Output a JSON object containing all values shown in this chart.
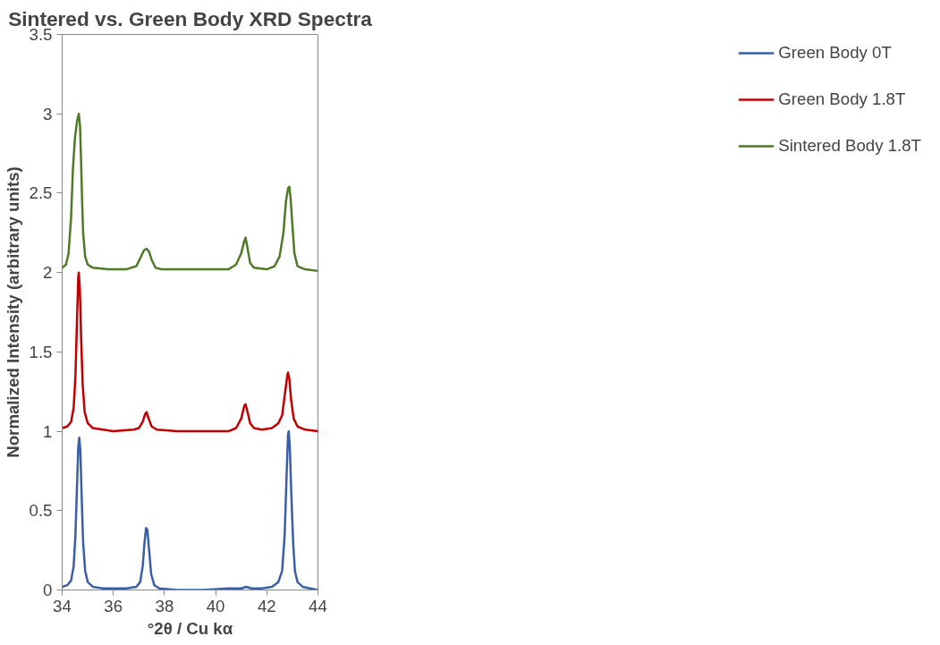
{
  "chart_data": {
    "type": "line",
    "title": "Sintered vs. Green Body XRD Spectra",
    "xlabel": "°2θ / Cu kα",
    "ylabel": "Normalized Intensity (arbitrary units)",
    "xlim": [
      34,
      44
    ],
    "xticks": [
      34,
      36,
      38,
      40,
      42,
      44
    ],
    "ylim": [
      0,
      3.5
    ],
    "yticks": [
      0,
      {
        "value": 0.5,
        "label": "0.5"
      },
      1,
      {
        "value": 1.5,
        "label": "1.5"
      },
      2,
      {
        "value": 2.5,
        "label": "2.5"
      },
      3,
      {
        "value": 3.5,
        "label": "3.5"
      }
    ],
    "grid": false,
    "legend": "right",
    "marker": "none",
    "line_style": "solid",
    "series": [
      {
        "name": "Green Body 0T",
        "color": "#3a5ea8",
        "x": [
          34.0,
          34.2,
          34.35,
          34.45,
          34.52,
          34.58,
          34.63,
          34.67,
          34.71,
          34.76,
          34.82,
          34.9,
          35.0,
          35.2,
          35.6,
          36.0,
          36.5,
          36.9,
          37.05,
          37.15,
          37.22,
          37.28,
          37.33,
          37.4,
          37.48,
          37.6,
          37.8,
          38.5,
          39.5,
          40.5,
          41.0,
          41.2,
          41.4,
          41.8,
          42.2,
          42.45,
          42.6,
          42.7,
          42.77,
          42.83,
          42.86,
          42.9,
          42.96,
          43.03,
          43.1,
          43.2,
          43.4,
          43.7,
          44.0
        ],
        "values": [
          0.02,
          0.03,
          0.06,
          0.15,
          0.35,
          0.65,
          0.9,
          0.96,
          0.88,
          0.6,
          0.3,
          0.12,
          0.05,
          0.02,
          0.01,
          0.01,
          0.01,
          0.02,
          0.05,
          0.15,
          0.3,
          0.39,
          0.38,
          0.25,
          0.1,
          0.03,
          0.01,
          0.0,
          0.0,
          0.01,
          0.01,
          0.02,
          0.01,
          0.01,
          0.02,
          0.05,
          0.12,
          0.35,
          0.7,
          0.98,
          1.0,
          0.9,
          0.6,
          0.3,
          0.12,
          0.05,
          0.02,
          0.01,
          0.0
        ]
      },
      {
        "name": "Green Body 1.8T",
        "color": "#c00000",
        "x": [
          34.0,
          34.2,
          34.35,
          34.45,
          34.52,
          34.58,
          34.63,
          34.65,
          34.69,
          34.74,
          34.8,
          34.88,
          35.0,
          35.2,
          35.6,
          36.0,
          36.8,
          37.0,
          37.15,
          37.25,
          37.3,
          37.38,
          37.5,
          37.7,
          38.5,
          39.5,
          40.5,
          40.8,
          41.0,
          41.12,
          41.17,
          41.25,
          41.35,
          41.5,
          41.8,
          42.2,
          42.45,
          42.6,
          42.72,
          42.8,
          42.83,
          42.88,
          42.95,
          43.05,
          43.2,
          43.5,
          44.0
        ],
        "values": [
          1.02,
          1.03,
          1.06,
          1.15,
          1.35,
          1.7,
          1.97,
          2.0,
          1.9,
          1.6,
          1.3,
          1.12,
          1.05,
          1.02,
          1.01,
          1.0,
          1.01,
          1.02,
          1.06,
          1.11,
          1.12,
          1.08,
          1.03,
          1.01,
          1.0,
          1.0,
          1.0,
          1.02,
          1.08,
          1.16,
          1.17,
          1.12,
          1.05,
          1.02,
          1.01,
          1.02,
          1.05,
          1.1,
          1.25,
          1.35,
          1.37,
          1.33,
          1.2,
          1.08,
          1.03,
          1.01,
          1.0
        ]
      },
      {
        "name": "Sintered Body 1.8T",
        "color": "#4f7a28",
        "x": [
          34.0,
          34.15,
          34.25,
          34.35,
          34.42,
          34.5,
          34.58,
          34.65,
          34.7,
          34.74,
          34.78,
          34.82,
          34.9,
          35.0,
          35.2,
          35.8,
          36.5,
          36.9,
          37.05,
          37.2,
          37.3,
          37.4,
          37.5,
          37.65,
          37.9,
          38.5,
          39.5,
          40.5,
          40.8,
          41.0,
          41.12,
          41.17,
          41.25,
          41.35,
          41.5,
          42.0,
          42.3,
          42.5,
          42.65,
          42.75,
          42.83,
          42.88,
          42.93,
          43.0,
          43.08,
          43.2,
          43.5,
          44.0
        ],
        "values": [
          2.03,
          2.05,
          2.12,
          2.35,
          2.65,
          2.85,
          2.95,
          3.0,
          2.92,
          2.7,
          2.45,
          2.25,
          2.1,
          2.05,
          2.03,
          2.02,
          2.02,
          2.04,
          2.09,
          2.14,
          2.15,
          2.13,
          2.08,
          2.03,
          2.02,
          2.02,
          2.02,
          2.02,
          2.05,
          2.12,
          2.2,
          2.22,
          2.15,
          2.06,
          2.03,
          2.02,
          2.04,
          2.1,
          2.25,
          2.45,
          2.53,
          2.54,
          2.47,
          2.3,
          2.12,
          2.04,
          2.02,
          2.01
        ]
      }
    ]
  }
}
